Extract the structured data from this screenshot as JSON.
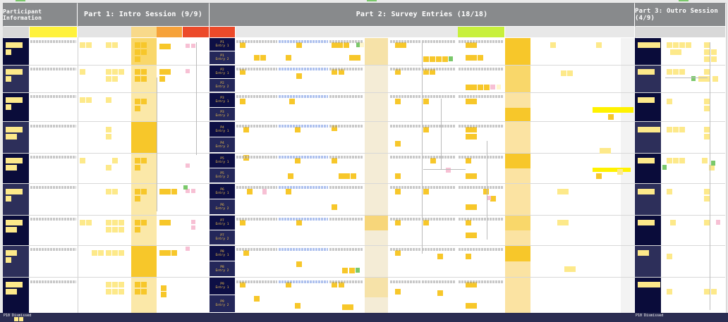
{
  "sections": {
    "participant": "Participant Information",
    "intro": "Part 1: Intro Session (9/9)",
    "survey": "Part 2: Survey Entries (18/18)",
    "outro": "Part 3: Outro Session (4/9)"
  },
  "entries": [
    {
      "pid": "P1",
      "label": "Entry 1"
    },
    {
      "pid": "P1",
      "label": "Entry 2"
    },
    {
      "pid": "P2",
      "label": "Entry 1"
    },
    {
      "pid": "P2",
      "label": "Entry 2"
    },
    {
      "pid": "P3",
      "label": "Entry 1"
    },
    {
      "pid": "P3",
      "label": "Entry 2"
    },
    {
      "pid": "P4",
      "label": "Entry 1"
    },
    {
      "pid": "P4",
      "label": "Entry 2"
    },
    {
      "pid": "P5",
      "label": "Entry 1"
    },
    {
      "pid": "P5",
      "label": "Entry 2"
    },
    {
      "pid": "P6",
      "label": "Entry 1"
    },
    {
      "pid": "P6",
      "label": "Entry 2"
    },
    {
      "pid": "P7",
      "label": "Entry 1"
    },
    {
      "pid": "P7",
      "label": "Entry 2"
    },
    {
      "pid": "P8",
      "label": "Entry 1"
    },
    {
      "pid": "P8",
      "label": "Entry 2"
    },
    {
      "pid": "P9",
      "label": "Entry 1"
    },
    {
      "pid": "P9",
      "label": "Entry 2"
    }
  ],
  "footer": {
    "left": "P10 Dismissed",
    "right": "P10 Dismissed"
  },
  "colors": {
    "header": "#888a8c",
    "navy": "#0a0c3a",
    "yellow": "#f7c72a",
    "red": "#ec4a2a",
    "orange": "#f6a23a",
    "lime": "#c8f03c"
  }
}
